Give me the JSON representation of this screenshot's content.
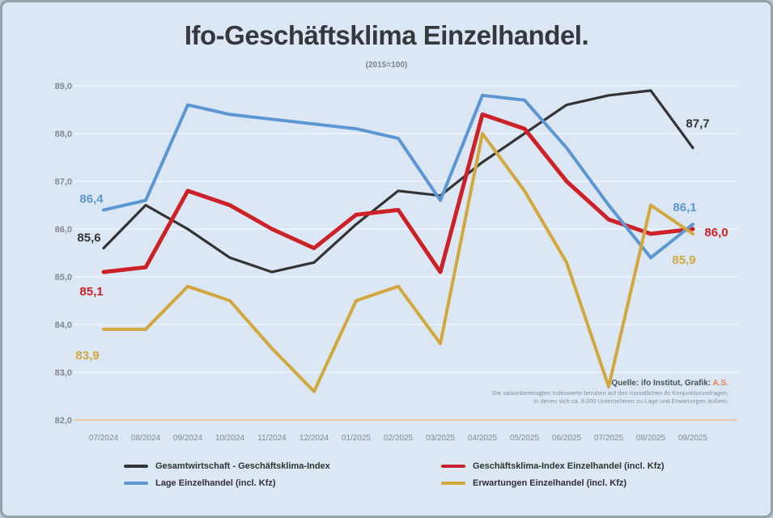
{
  "title": "Ifo-Geschäftsklima Einzelhandel.",
  "subtitle": "(2015=100)",
  "source_note": {
    "line1_prefix": "Quelle: ifo Institut, Grafik: ",
    "line1_highlight": "A.S.",
    "line2": "Die saisonbereinigten Indexwerte beruhen auf den monatlichen ifo Konjunkturumfragen,",
    "line3": "in denen sich ca. 9.000 Unternehmen zu Lage und Erwartungen äußern."
  },
  "chart_data": {
    "type": "line",
    "x": [
      "07/2024",
      "08/2024",
      "09/2024",
      "10/2024",
      "11/2024",
      "12/2024",
      "01/2025",
      "02/2025",
      "03/2025",
      "04/2025",
      "05/2025",
      "06/2025",
      "07/2025",
      "08/2025",
      "09/2025"
    ],
    "ylim": [
      82,
      89
    ],
    "yticks": [
      "89,0",
      "88,0",
      "87,0",
      "86,0",
      "85,0",
      "84,0",
      "83,0",
      "82,0"
    ],
    "grid": true,
    "legend_position": "bottom",
    "axis_line_color": "#f2c6a5",
    "grid_color": "#ecf2fa",
    "tick_label_color": "#84898f",
    "series": [
      {
        "name": "Gesamtwirtschaft - Geschäftsklima-Index",
        "color": "#343434",
        "stroke_width": 3.2,
        "values": [
          85.6,
          86.5,
          86.0,
          85.4,
          85.1,
          85.3,
          86.1,
          86.8,
          86.7,
          87.4,
          88.0,
          88.6,
          88.8,
          88.9,
          87.7
        ],
        "start_label": "85,6",
        "end_label": "87,7",
        "start_label_offset": [
          -18,
          -13
        ],
        "end_label_offset": [
          6,
          -30
        ]
      },
      {
        "name": "Geschäftsklima-Index Einzelhandel (incl. Kfz)",
        "color": "#cd2128",
        "stroke_width": 5,
        "values": [
          85.1,
          85.2,
          86.8,
          86.5,
          86.0,
          85.6,
          86.3,
          86.4,
          85.1,
          88.4,
          88.1,
          87.0,
          86.2,
          85.9,
          86.0
        ],
        "start_label": "85,1",
        "end_label": "86,0",
        "start_label_offset": [
          -15,
          24
        ],
        "end_label_offset": [
          29,
          4
        ]
      },
      {
        "name": "Lage Einzelhandel (incl. Kfz)",
        "color": "#5d97d3",
        "stroke_width": 4,
        "values": [
          86.4,
          86.6,
          88.6,
          88.4,
          88.3,
          88.2,
          88.1,
          87.9,
          86.6,
          88.8,
          88.7,
          87.7,
          86.5,
          85.4,
          86.1
        ],
        "start_label": "86,4",
        "end_label": "86,1",
        "start_label_offset": [
          -15,
          -14
        ],
        "end_label_offset": [
          -10,
          -21
        ]
      },
      {
        "name": "Erwartungen Einzelhandel (incl. Kfz)",
        "color": "#d2a83e",
        "stroke_width": 4,
        "values": [
          83.9,
          83.9,
          84.8,
          84.5,
          83.5,
          82.6,
          84.5,
          84.8,
          83.6,
          88.0,
          86.8,
          85.3,
          82.7,
          86.5,
          85.9
        ],
        "start_label": "83,9",
        "end_label": "85,9",
        "start_label_offset": [
          -20,
          32
        ],
        "end_label_offset": [
          -11,
          32
        ]
      }
    ]
  }
}
